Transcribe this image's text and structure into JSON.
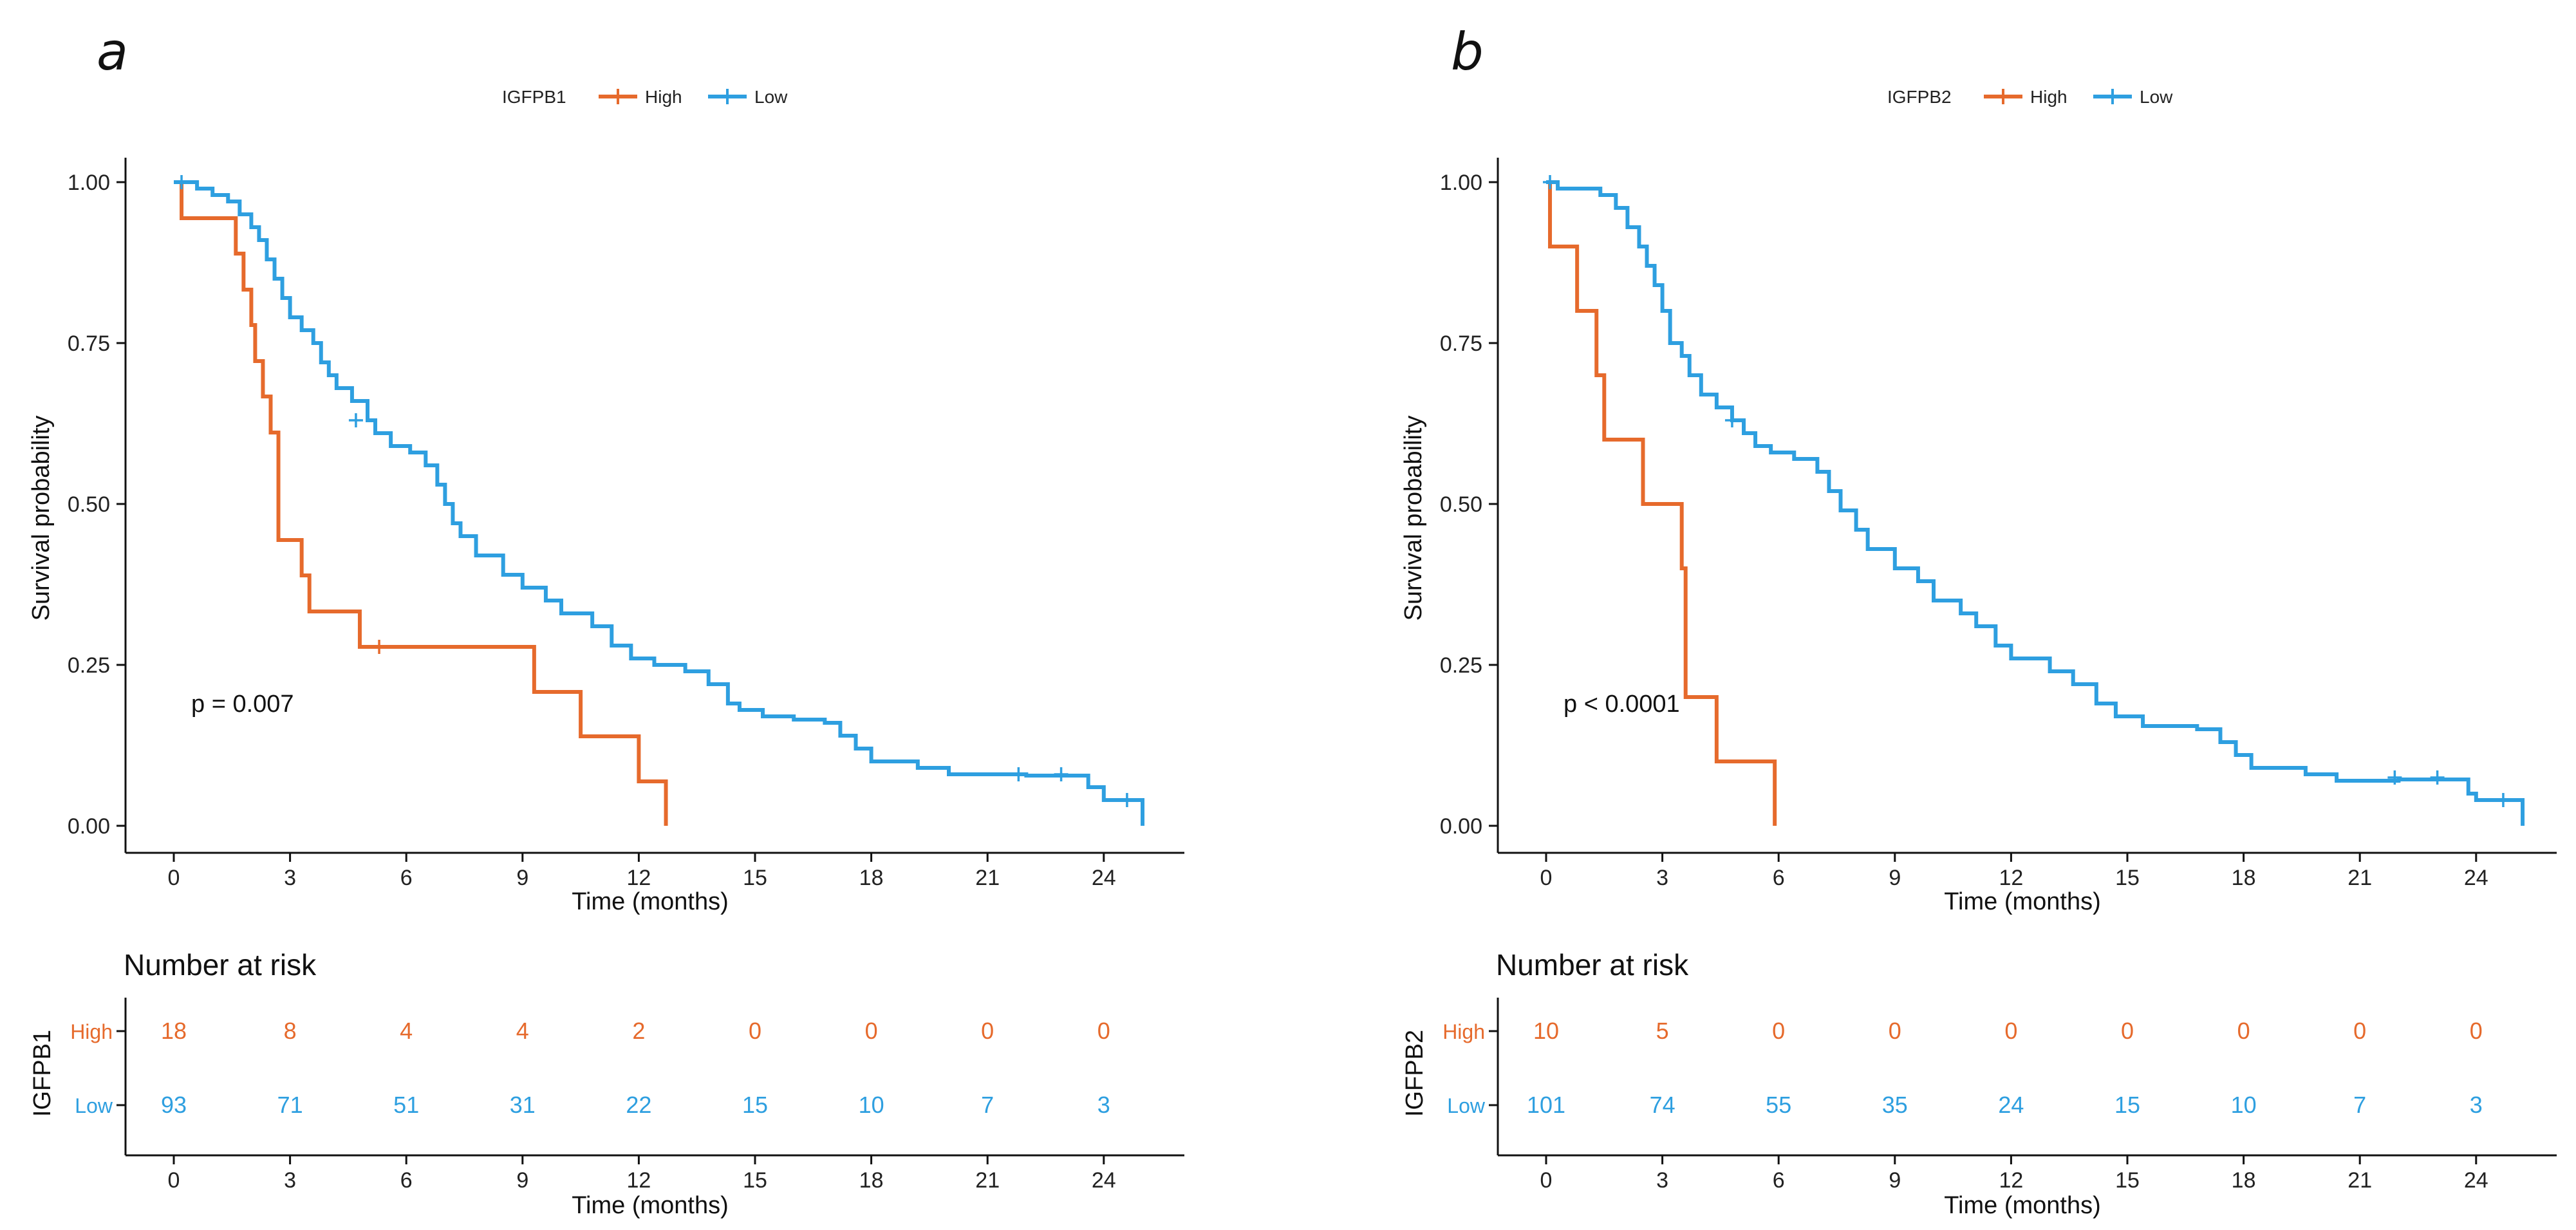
{
  "colors": {
    "high": "#E66A2C",
    "low": "#2E9FE0"
  },
  "chart_data": [
    {
      "panel": "a",
      "type": "line",
      "subtype": "kaplan-meier",
      "gene": "IGFPB1",
      "legend": {
        "title": "IGFPB1",
        "entries": [
          "High",
          "Low"
        ]
      },
      "xlabel": "Time (months)",
      "ylabel": "Survival probability",
      "xlim": [
        -2,
        26
      ],
      "ylim": [
        0,
        1
      ],
      "xticks": [
        0,
        3,
        6,
        9,
        12,
        15,
        18,
        21,
        24
      ],
      "yticks": [
        "0.00",
        "0.25",
        "0.50",
        "0.75",
        "1.00"
      ],
      "pvalue": "p = 0.007",
      "series": [
        {
          "name": "High",
          "steps": [
            [
              0,
              1.0
            ],
            [
              0.2,
              0.944
            ],
            [
              1.6,
              0.889
            ],
            [
              1.8,
              0.833
            ],
            [
              2.0,
              0.778
            ],
            [
              2.1,
              0.722
            ],
            [
              2.3,
              0.667
            ],
            [
              2.5,
              0.611
            ],
            [
              2.7,
              0.444
            ],
            [
              3.3,
              0.389
            ],
            [
              3.5,
              0.333
            ],
            [
              4.8,
              0.278
            ],
            [
              9.3,
              0.208
            ],
            [
              10.5,
              0.139
            ],
            [
              12.0,
              0.069
            ],
            [
              12.7,
              0.0
            ]
          ],
          "end": 12.7,
          "censor": [
            [
              5.3,
              0.278
            ]
          ]
        },
        {
          "name": "Low",
          "steps": [
            [
              0,
              1.0
            ],
            [
              0.6,
              0.99
            ],
            [
              1.0,
              0.98
            ],
            [
              1.4,
              0.97
            ],
            [
              1.7,
              0.95
            ],
            [
              2.0,
              0.93
            ],
            [
              2.2,
              0.91
            ],
            [
              2.4,
              0.88
            ],
            [
              2.6,
              0.85
            ],
            [
              2.8,
              0.82
            ],
            [
              3.0,
              0.79
            ],
            [
              3.3,
              0.77
            ],
            [
              3.6,
              0.75
            ],
            [
              3.8,
              0.72
            ],
            [
              4.0,
              0.7
            ],
            [
              4.2,
              0.68
            ],
            [
              4.6,
              0.66
            ],
            [
              5.0,
              0.63
            ],
            [
              5.2,
              0.61
            ],
            [
              5.6,
              0.59
            ],
            [
              6.1,
              0.58
            ],
            [
              6.5,
              0.56
            ],
            [
              6.8,
              0.53
            ],
            [
              7.0,
              0.5
            ],
            [
              7.2,
              0.47
            ],
            [
              7.4,
              0.45
            ],
            [
              7.8,
              0.42
            ],
            [
              8.5,
              0.39
            ],
            [
              9.0,
              0.37
            ],
            [
              9.6,
              0.35
            ],
            [
              10.0,
              0.33
            ],
            [
              10.8,
              0.31
            ],
            [
              11.3,
              0.28
            ],
            [
              11.8,
              0.26
            ],
            [
              12.4,
              0.25
            ],
            [
              13.2,
              0.24
            ],
            [
              13.8,
              0.22
            ],
            [
              14.3,
              0.19
            ],
            [
              14.6,
              0.18
            ],
            [
              15.2,
              0.17
            ],
            [
              16.0,
              0.165
            ],
            [
              16.8,
              0.16
            ],
            [
              17.2,
              0.14
            ],
            [
              17.6,
              0.12
            ],
            [
              18.0,
              0.1
            ],
            [
              19.2,
              0.09
            ],
            [
              20.0,
              0.08
            ],
            [
              22.0,
              0.078
            ],
            [
              23.6,
              0.06
            ],
            [
              24.0,
              0.04
            ],
            [
              25.0,
              0.0
            ]
          ],
          "end": 25.0,
          "censor": [
            [
              0.2,
              1.0
            ],
            [
              4.7,
              0.63
            ],
            [
              21.8,
              0.08
            ],
            [
              22.9,
              0.08
            ],
            [
              24.6,
              0.04
            ]
          ]
        }
      ],
      "risk_table": {
        "heading": "Number at risk",
        "strata_title": "IGFPB1",
        "time_points": [
          0,
          3,
          6,
          9,
          12,
          15,
          18,
          21,
          24
        ],
        "xlabel": "Time (months)",
        "rows": [
          {
            "label": "High",
            "values": [
              18,
              8,
              4,
              4,
              2,
              0,
              0,
              0,
              0
            ]
          },
          {
            "label": "Low",
            "values": [
              93,
              71,
              51,
              31,
              22,
              15,
              10,
              7,
              3
            ]
          }
        ]
      }
    },
    {
      "panel": "b",
      "type": "line",
      "subtype": "kaplan-meier",
      "gene": "IGFPB2",
      "legend": {
        "title": "IGFPB2",
        "entries": [
          "High",
          "Low"
        ]
      },
      "xlabel": "Time (months)",
      "ylabel": "Survival probability",
      "xlim": [
        -2,
        26
      ],
      "ylim": [
        0,
        1
      ],
      "xticks": [
        0,
        3,
        6,
        9,
        12,
        15,
        18,
        21,
        24
      ],
      "yticks": [
        "0.00",
        "0.25",
        "0.50",
        "0.75",
        "1.00"
      ],
      "pvalue": "p < 0.0001",
      "series": [
        {
          "name": "High",
          "steps": [
            [
              0,
              1.0
            ],
            [
              0.1,
              0.9
            ],
            [
              0.8,
              0.8
            ],
            [
              1.3,
              0.7
            ],
            [
              1.5,
              0.6
            ],
            [
              2.5,
              0.5
            ],
            [
              3.5,
              0.4
            ],
            [
              3.6,
              0.2
            ],
            [
              4.4,
              0.1
            ],
            [
              5.9,
              0.0
            ]
          ],
          "end": 5.9,
          "censor": []
        },
        {
          "name": "Low",
          "steps": [
            [
              0,
              1.0
            ],
            [
              0.3,
              0.99
            ],
            [
              1.4,
              0.98
            ],
            [
              1.8,
              0.96
            ],
            [
              2.1,
              0.93
            ],
            [
              2.4,
              0.9
            ],
            [
              2.6,
              0.87
            ],
            [
              2.8,
              0.84
            ],
            [
              3.0,
              0.8
            ],
            [
              3.2,
              0.75
            ],
            [
              3.5,
              0.73
            ],
            [
              3.7,
              0.7
            ],
            [
              4.0,
              0.67
            ],
            [
              4.4,
              0.65
            ],
            [
              4.8,
              0.63
            ],
            [
              5.1,
              0.61
            ],
            [
              5.4,
              0.59
            ],
            [
              5.8,
              0.58
            ],
            [
              6.4,
              0.57
            ],
            [
              7.0,
              0.55
            ],
            [
              7.3,
              0.52
            ],
            [
              7.6,
              0.49
            ],
            [
              8.0,
              0.46
            ],
            [
              8.3,
              0.43
            ],
            [
              9.0,
              0.4
            ],
            [
              9.6,
              0.38
            ],
            [
              10.0,
              0.35
            ],
            [
              10.7,
              0.33
            ],
            [
              11.1,
              0.31
            ],
            [
              11.6,
              0.28
            ],
            [
              12.0,
              0.26
            ],
            [
              13.0,
              0.24
            ],
            [
              13.6,
              0.22
            ],
            [
              14.2,
              0.19
            ],
            [
              14.7,
              0.17
            ],
            [
              15.4,
              0.155
            ],
            [
              16.8,
              0.15
            ],
            [
              17.4,
              0.13
            ],
            [
              17.8,
              0.11
            ],
            [
              18.2,
              0.09
            ],
            [
              19.6,
              0.08
            ],
            [
              20.4,
              0.07
            ],
            [
              22.0,
              0.072
            ],
            [
              23.8,
              0.05
            ],
            [
              24.0,
              0.04
            ],
            [
              25.2,
              0.0
            ]
          ],
          "end": 25.2,
          "censor": [
            [
              0.1,
              1.0
            ],
            [
              4.8,
              0.63
            ],
            [
              21.9,
              0.075
            ],
            [
              23.0,
              0.075
            ],
            [
              24.7,
              0.04
            ]
          ]
        }
      ],
      "risk_table": {
        "heading": "Number at risk",
        "strata_title": "IGFPB2",
        "time_points": [
          0,
          3,
          6,
          9,
          12,
          15,
          18,
          21,
          24
        ],
        "xlabel": "Time (months)",
        "rows": [
          {
            "label": "High",
            "values": [
              10,
              5,
              0,
              0,
              0,
              0,
              0,
              0,
              0
            ]
          },
          {
            "label": "Low",
            "values": [
              101,
              74,
              55,
              35,
              24,
              15,
              10,
              7,
              3
            ]
          }
        ]
      }
    }
  ]
}
